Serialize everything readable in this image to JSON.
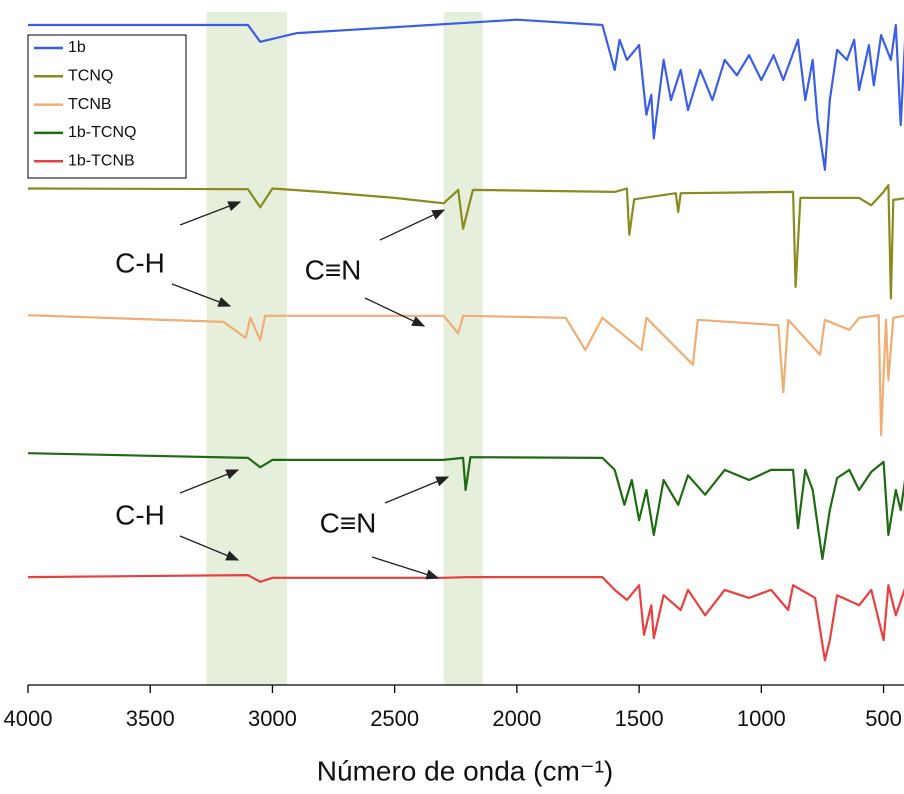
{
  "chart_data": {
    "type": "line",
    "xlabel": "Número de onda (cm⁻¹)",
    "xlim": [
      4000,
      400
    ],
    "ylim": [
      0,
      100
    ],
    "xticks": [
      {
        "value": 4000,
        "label": "4000"
      },
      3500,
      3000,
      2500,
      2000,
      1500,
      1000,
      500
    ],
    "legend": "upper left",
    "bands": [
      [
        3270,
        2940
      ],
      [
        2300,
        2140
      ]
    ],
    "band_color": "#e6eedc",
    "annotations": [
      "C-H",
      "C≡N",
      "C-H",
      "C≡N"
    ],
    "series": [
      {
        "name": "1b",
        "color": "#3a5ee8",
        "x": [
          4000,
          3100,
          3050,
          2900,
          2000,
          1650,
          1600,
          1580,
          1550,
          1500,
          1470,
          1450,
          1440,
          1400,
          1370,
          1330,
          1300,
          1250,
          1200,
          1150,
          1100,
          1050,
          1000,
          950,
          910,
          850,
          820,
          790,
          770,
          740,
          720,
          690,
          650,
          620,
          600,
          560,
          540,
          510,
          470,
          450,
          430,
          410,
          400
        ],
        "values": [
          98.5,
          98.5,
          96.0,
          97.3,
          99.3,
          98.5,
          91.8,
          96.3,
          93.3,
          95.5,
          85.1,
          88.1,
          81.6,
          93.3,
          87.3,
          91.8,
          85.8,
          91.8,
          87.3,
          93.3,
          91.0,
          94.0,
          90.3,
          94.0,
          90.3,
          96.3,
          87.3,
          93.3,
          84.3,
          76.9,
          87.3,
          94.8,
          93.3,
          96.3,
          88.8,
          95.5,
          89.5,
          97.0,
          93.3,
          98.5,
          83.6,
          97.8,
          97.8
        ]
      },
      {
        "name": "TCNQ",
        "color": "#8a8a1e",
        "x": [
          4000,
          3100,
          3050,
          3000,
          2800,
          2500,
          2300,
          2240,
          2220,
          2180,
          1600,
          1550,
          1540,
          1520,
          1350,
          1340,
          1330,
          870,
          860,
          840,
          600,
          550,
          500,
          480,
          470,
          460,
          400
        ],
        "values": [
          74.1,
          74.0,
          71.3,
          74.1,
          73.6,
          72.7,
          71.9,
          73.9,
          68.1,
          73.9,
          73.6,
          74.1,
          67.2,
          72.5,
          73.4,
          70.6,
          73.4,
          73.6,
          59.4,
          72.7,
          72.7,
          71.6,
          73.6,
          74.6,
          57.7,
          72.4,
          72.7
        ]
      },
      {
        "name": "TCNB",
        "color": "#f0ad74",
        "x": [
          4000,
          3200,
          3110,
          3090,
          3050,
          3030,
          2300,
          2240,
          2220,
          1800,
          1720,
          1650,
          1490,
          1470,
          1280,
          1260,
          930,
          910,
          890,
          760,
          740,
          640,
          600,
          520,
          510,
          490,
          480,
          460,
          400
        ],
        "values": [
          55.2,
          54.2,
          51.8,
          54.8,
          51.5,
          55.1,
          55.1,
          52.5,
          55.1,
          54.8,
          50.0,
          54.8,
          50.0,
          54.8,
          47.8,
          54.5,
          53.7,
          43.7,
          54.5,
          49.3,
          54.5,
          53.0,
          54.8,
          55.2,
          37.3,
          54.5,
          45.5,
          54.8,
          55.2
        ]
      },
      {
        "name": "1b-TCNQ",
        "color": "#1e6b12",
        "x": [
          4000,
          3100,
          3050,
          3000,
          2300,
          2220,
          2210,
          2190,
          1650,
          1600,
          1560,
          1530,
          1500,
          1470,
          1440,
          1400,
          1340,
          1300,
          1230,
          1150,
          1050,
          960,
          870,
          850,
          820,
          790,
          750,
          720,
          690,
          640,
          600,
          550,
          500,
          480,
          450,
          430,
          400
        ],
        "values": [
          34.6,
          33.9,
          32.5,
          33.6,
          33.6,
          33.9,
          29.1,
          34.0,
          33.9,
          32.1,
          26.9,
          30.6,
          24.6,
          29.1,
          22.4,
          30.6,
          26.9,
          31.3,
          28.4,
          32.1,
          30.6,
          32.1,
          32.1,
          23.4,
          32.1,
          29.1,
          18.8,
          26.1,
          30.9,
          32.1,
          29.1,
          31.8,
          33.3,
          22.4,
          29.1,
          26.1,
          33.6
        ]
      },
      {
        "name": "1b-TCNB",
        "color": "#e8403e",
        "x": [
          4000,
          3100,
          3050,
          3000,
          2300,
          2200,
          1650,
          1600,
          1550,
          1500,
          1480,
          1450,
          1440,
          1400,
          1330,
          1300,
          1230,
          1150,
          1050,
          960,
          890,
          870,
          780,
          740,
          720,
          690,
          600,
          550,
          500,
          480,
          450,
          400
        ],
        "values": [
          16.1,
          16.4,
          15.4,
          16.0,
          16.0,
          16.1,
          16.1,
          14.2,
          12.7,
          14.9,
          7.5,
          11.9,
          7.0,
          13.4,
          11.2,
          14.2,
          10.4,
          14.2,
          13.0,
          14.2,
          11.2,
          14.9,
          13.0,
          3.7,
          6.7,
          13.4,
          11.9,
          14.2,
          6.7,
          14.9,
          10.4,
          15.7
        ]
      }
    ]
  }
}
